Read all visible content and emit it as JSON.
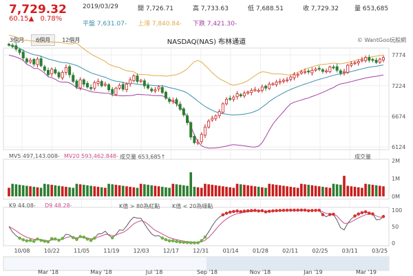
{
  "quote": {
    "last": "7,729.32",
    "change": "60.15▲",
    "change_pct": "0.78%",
    "date": "2019/03/29",
    "open": "開 7,726.71",
    "high": "高 7,733.63",
    "low": "低 7,688.51",
    "close": "收 7,729.32",
    "volume": "量 653,685",
    "mid": "平盤 7,631.07-",
    "upper": "上漲 7,840.84-",
    "lower": "下跌 7,421.30-"
  },
  "tabs": [
    "3個月",
    "6個月",
    "12個月"
  ],
  "active_tab": 1,
  "chart_title": "NASDAQ(NAS) 布林通道",
  "copyright": "© WantGoo玩股網",
  "indicators": {
    "mv5": "MV5 497,143.008-",
    "mv20": "MV20 593,462.848-",
    "vol_label": "成交量 653,685↑",
    "vol_right": "成交量",
    "k9": "K9 44.08-",
    "d9": "D9 48.28-",
    "kd_hi": "K值 > 80為紅點",
    "kd_lo": "K值 < 20為綠點"
  },
  "colors": {
    "up": "#c91d1d",
    "down": "#2e7d32",
    "upper_band": "#e3a94a",
    "middle_band": "#3b8fa8",
    "lower_band": "#a43fa3",
    "kd_red_dot": "#d83030",
    "kd_green_dot": "#6cb33f"
  },
  "chart_data": {
    "type": "candlestick",
    "price_axis": {
      "ticks": [
        "7774",
        "7224",
        "6674",
        "6124"
      ],
      "range": [
        6124,
        7850
      ]
    },
    "volume_axis": {
      "ticks": [
        "2M",
        "1M",
        "0M"
      ],
      "range": [
        0,
        2000000
      ]
    },
    "kd_axis": {
      "ticks": [
        "100",
        "50",
        "0"
      ],
      "range": [
        0,
        100
      ]
    },
    "x_ticks": [
      "10/08",
      "10/22",
      "11/05",
      "11/19",
      "12/03",
      "12/17",
      "12/31",
      "01/14",
      "01/28",
      "02/11",
      "02/25",
      "03/11",
      "03/25"
    ],
    "navigator_labels": [
      "Mar '18",
      "May '18",
      "Jul '18",
      "Sep '18",
      "Nov '18",
      "Jan '19",
      "Mar '19"
    ],
    "close_series": [
      7950,
      7925,
      7880,
      7820,
      7720,
      7650,
      7680,
      7610,
      7700,
      7580,
      7500,
      7420,
      7520,
      7450,
      7380,
      7460,
      7550,
      7420,
      7300,
      7200,
      7330,
      7250,
      7200,
      7170,
      7280,
      7300,
      7220,
      7250,
      7150,
      7080,
      7180,
      7230,
      7160,
      7250,
      7330,
      7400,
      7300,
      7320,
      7220,
      7180,
      7130,
      7150,
      7200,
      7100,
      7000,
      6940,
      6960,
      6900,
      6800,
      6700,
      6560,
      6300,
      6200,
      6210,
      6350,
      6480,
      6590,
      6640,
      6680,
      6760,
      6900,
      6980,
      6990,
      7020,
      7080,
      7040,
      7090,
      7110,
      7140,
      7150,
      7140,
      7200,
      7180,
      7250,
      7260,
      7290,
      7300,
      7320,
      7330,
      7380,
      7420,
      7430,
      7470,
      7480,
      7470,
      7500,
      7520,
      7520,
      7480,
      7490,
      7560,
      7550,
      7500,
      7450,
      7480,
      7590,
      7620,
      7640,
      7660,
      7690,
      7730,
      7680,
      7690,
      7640,
      7700,
      7729
    ]
  }
}
